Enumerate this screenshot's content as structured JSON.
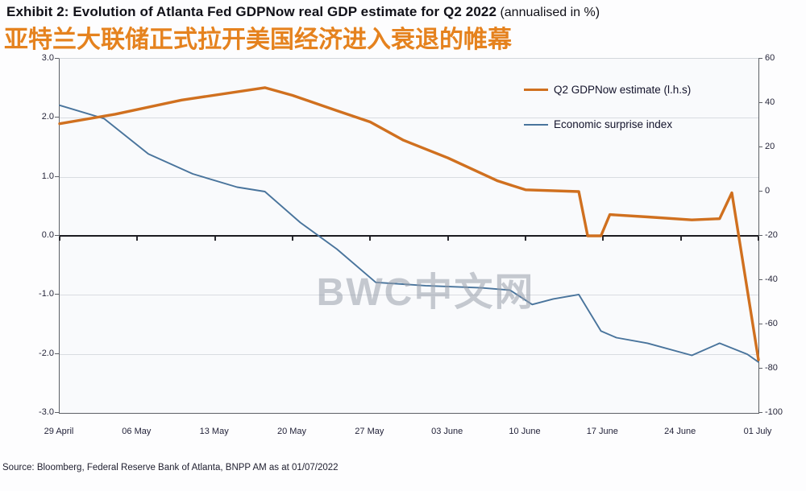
{
  "header": {
    "title_bold": "Exhibit 2:  Evolution of Atlanta Fed GDPNow real GDP estimate for Q2 2022",
    "title_suffix": " (annualised in %)",
    "subtitle_cn": "亚特兰大联储正式拉开美国经济进入衰退的帷幕"
  },
  "chart_data": {
    "type": "line",
    "title": "Evolution of Atlanta Fed GDPNow real GDP estimate for Q2 2022 (annualised in %)",
    "x_axis": {
      "labels": [
        "29 April",
        "06 May",
        "13 May",
        "20 May",
        "27 May",
        "03 June",
        "10 June",
        "17 June",
        "24 June",
        "01 July"
      ],
      "tick_days": [
        0,
        7,
        14,
        21,
        28,
        35,
        42,
        49,
        56,
        63
      ],
      "range_days": [
        0,
        63
      ]
    },
    "left_axis": {
      "tick_labels": [
        "3.0",
        "2.0",
        "1.0",
        "0.0",
        "-1.0",
        "-2.0",
        "-3.0"
      ],
      "tick_values": [
        3,
        2,
        1,
        0,
        -1,
        -2,
        -3
      ],
      "range": [
        -3,
        3
      ],
      "grid_values": [
        2,
        1,
        -1,
        -2
      ],
      "zero_line": true
    },
    "right_axis": {
      "tick_labels": [
        "60",
        "40",
        "20",
        "0",
        "-20",
        "-40",
        "-60",
        "-80",
        "-100"
      ],
      "tick_values": [
        60,
        40,
        20,
        0,
        -20,
        -40,
        -60,
        -80,
        -100
      ],
      "range": [
        -100,
        60
      ]
    },
    "series": [
      {
        "name": "Q2 GDPNow estimate (l.h.s)",
        "axis": "left",
        "color": "#d0701f",
        "width": 3.4,
        "points": [
          [
            0,
            1.9
          ],
          [
            5,
            2.06
          ],
          [
            11,
            2.3
          ],
          [
            18.5,
            2.51
          ],
          [
            21,
            2.38
          ],
          [
            25,
            2.12
          ],
          [
            28,
            1.93
          ],
          [
            31,
            1.62
          ],
          [
            35,
            1.32
          ],
          [
            39.5,
            0.93
          ],
          [
            42,
            0.78
          ],
          [
            46.8,
            0.75
          ],
          [
            47.6,
            0.0
          ],
          [
            48.8,
            0.0
          ],
          [
            49.6,
            0.36
          ],
          [
            53,
            0.32
          ],
          [
            57,
            0.27
          ],
          [
            59.5,
            0.29
          ],
          [
            60.6,
            0.73
          ],
          [
            63,
            -2.1
          ]
        ]
      },
      {
        "name": "Economic surprise index",
        "axis": "right",
        "color": "#49749c",
        "width": 1.9,
        "points": [
          [
            0,
            39
          ],
          [
            4,
            33
          ],
          [
            8,
            17
          ],
          [
            12,
            8
          ],
          [
            16,
            2
          ],
          [
            18.5,
            0
          ],
          [
            21.7,
            -14
          ],
          [
            25,
            -26
          ],
          [
            28.5,
            -41
          ],
          [
            33,
            -42.5
          ],
          [
            38,
            -43.5
          ],
          [
            40.6,
            -44.5
          ],
          [
            42.6,
            -51
          ],
          [
            44.5,
            -48.5
          ],
          [
            46.8,
            -46.5
          ],
          [
            48.8,
            -63
          ],
          [
            50.2,
            -66
          ],
          [
            53,
            -68.5
          ],
          [
            57,
            -74
          ],
          [
            59.5,
            -68.5
          ],
          [
            62,
            -73.5
          ],
          [
            63,
            -77
          ]
        ]
      }
    ],
    "legend_position": "top-right",
    "grid": "horizontal",
    "watermark": "BWC中文网",
    "source": "Source: Bloomberg, Federal Reserve Bank of Atlanta, BNPP AM as at 01/07/2022"
  }
}
